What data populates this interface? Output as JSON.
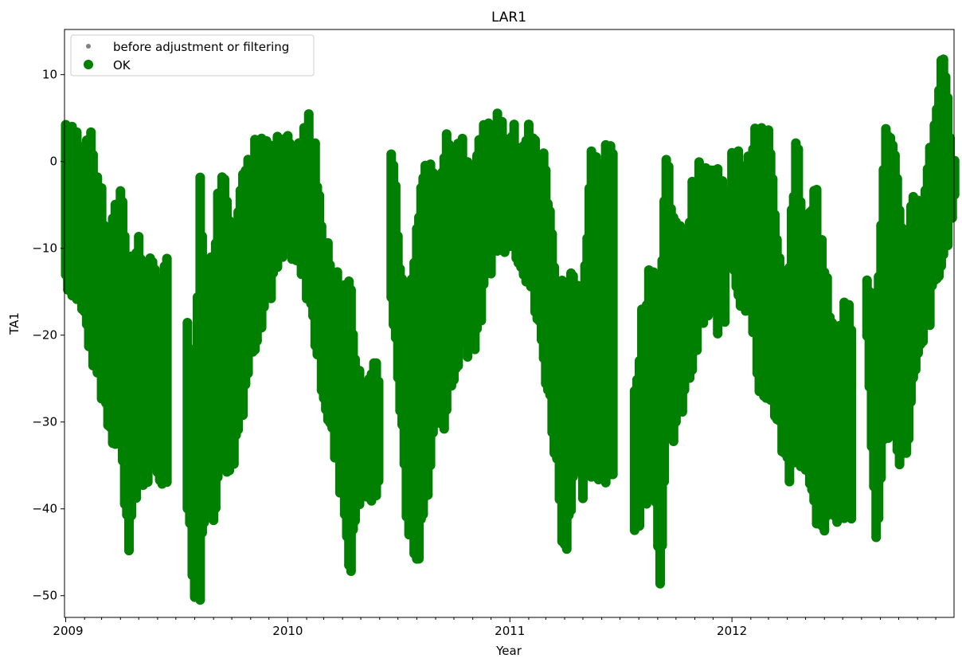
{
  "chart_data": {
    "type": "scatter",
    "title": "LAR1",
    "xlabel": "Year",
    "ylabel": "TA1",
    "xlim": [
      "2008-12-30",
      "2012-12-31"
    ],
    "ylim": [
      -52.5,
      15.2
    ],
    "x_ticks": [
      "2009",
      "2010",
      "2011",
      "2012"
    ],
    "y_ticks": [
      10,
      0,
      -10,
      -20,
      -30,
      -40,
      -50
    ],
    "grid": false,
    "legend": {
      "location": "upper left",
      "entries": [
        {
          "label": "before adjustment or filtering",
          "color": "#808080",
          "marker": "small-dot"
        },
        {
          "label": "OK",
          "color": "#008000",
          "marker": "circle"
        }
      ]
    },
    "series": [
      {
        "name": "OK",
        "color": "#008000",
        "approximate_daily_ranges": [
          {
            "x": "2009-01-01",
            "y_min": -13,
            "y_max": 4
          },
          {
            "x": "2009-01-15",
            "y_min": -14,
            "y_max": 2
          },
          {
            "x": "2009-02-01",
            "y_min": -18,
            "y_max": 3
          },
          {
            "x": "2009-02-15",
            "y_min": -22,
            "y_max": 1
          },
          {
            "x": "2009-03-01",
            "y_min": -26,
            "y_max": -5
          },
          {
            "x": "2009-03-15",
            "y_min": -30,
            "y_max": -10
          },
          {
            "x": "2009-04-01",
            "y_min": -33,
            "y_max": -3
          },
          {
            "x": "2009-04-15",
            "y_min": -43,
            "y_max": -12
          },
          {
            "x": "2009-05-01",
            "y_min": -37,
            "y_max": -10
          },
          {
            "x": "2009-05-12",
            "y_min": -36,
            "y_max": -13
          },
          {
            "x": "2009-07-20",
            "y_min": -38,
            "y_max": -18
          },
          {
            "x": "2009-08-01",
            "y_min": -50,
            "y_max": -28
          },
          {
            "x": "2009-08-10",
            "y_min": -49,
            "y_max": -3
          },
          {
            "x": "2009-08-20",
            "y_min": -35,
            "y_max": -17
          },
          {
            "x": "2009-09-01",
            "y_min": -40,
            "y_max": -10
          },
          {
            "x": "2009-09-15",
            "y_min": -33,
            "y_max": 0
          },
          {
            "x": "2009-10-01",
            "y_min": -35,
            "y_max": -8
          },
          {
            "x": "2009-10-15",
            "y_min": -29,
            "y_max": -3
          },
          {
            "x": "2009-11-01",
            "y_min": -22,
            "y_max": -1
          },
          {
            "x": "2009-11-15",
            "y_min": -18,
            "y_max": 3
          },
          {
            "x": "2009-12-01",
            "y_min": -15,
            "y_max": 0
          },
          {
            "x": "2009-12-15",
            "y_min": -12,
            "y_max": 1
          },
          {
            "x": "2010-01-01",
            "y_min": -10,
            "y_max": 1
          },
          {
            "x": "2010-01-15",
            "y_min": -12,
            "y_max": 0
          },
          {
            "x": "2010-02-01",
            "y_min": -14,
            "y_max": 4
          },
          {
            "x": "2010-02-15",
            "y_min": -20,
            "y_max": 2
          },
          {
            "x": "2010-03-01",
            "y_min": -26,
            "y_max": -10
          },
          {
            "x": "2010-03-15",
            "y_min": -32,
            "y_max": -12
          },
          {
            "x": "2010-04-01",
            "y_min": -38,
            "y_max": -14
          },
          {
            "x": "2010-04-15",
            "y_min": -47,
            "y_max": -15
          },
          {
            "x": "2010-04-25",
            "y_min": -38,
            "y_max": -25
          },
          {
            "x": "2010-06-20",
            "y_min": -14,
            "y_max": 2
          },
          {
            "x": "2010-07-01",
            "y_min": -24,
            "y_max": -8
          },
          {
            "x": "2010-07-15",
            "y_min": -40,
            "y_max": -20
          },
          {
            "x": "2010-08-01",
            "y_min": -46,
            "y_max": -8
          },
          {
            "x": "2010-08-15",
            "y_min": -39,
            "y_max": 0
          },
          {
            "x": "2010-09-01",
            "y_min": -30,
            "y_max": -4
          },
          {
            "x": "2010-09-15",
            "y_min": -29,
            "y_max": 1
          },
          {
            "x": "2010-10-01",
            "y_min": -25,
            "y_max": 2
          },
          {
            "x": "2010-10-15",
            "y_min": -20,
            "y_max": 2
          },
          {
            "x": "2010-11-01",
            "y_min": -21,
            "y_max": -2
          },
          {
            "x": "2010-11-15",
            "y_min": -17,
            "y_max": 2
          },
          {
            "x": "2010-12-01",
            "y_min": -11,
            "y_max": 3
          },
          {
            "x": "2010-12-15",
            "y_min": -9,
            "y_max": 4
          },
          {
            "x": "2011-01-01",
            "y_min": -8,
            "y_max": 3
          },
          {
            "x": "2011-01-15",
            "y_min": -10,
            "y_max": 2
          },
          {
            "x": "2011-02-01",
            "y_min": -13,
            "y_max": 3
          },
          {
            "x": "2011-02-15",
            "y_min": -18,
            "y_max": 1
          },
          {
            "x": "2011-03-01",
            "y_min": -24,
            "y_max": -1
          },
          {
            "x": "2011-03-15",
            "y_min": -32,
            "y_max": -12
          },
          {
            "x": "2011-04-01",
            "y_min": -45,
            "y_max": -14
          },
          {
            "x": "2011-04-15",
            "y_min": -36,
            "y_max": -14
          },
          {
            "x": "2011-05-01",
            "y_min": -38,
            "y_max": -17
          },
          {
            "x": "2011-05-15",
            "y_min": -35,
            "y_max": 0
          },
          {
            "x": "2011-07-25",
            "y_min": -43,
            "y_max": -26
          },
          {
            "x": "2011-08-10",
            "y_min": -38,
            "y_max": -16
          },
          {
            "x": "2011-08-25",
            "y_min": -36,
            "y_max": -13
          },
          {
            "x": "2011-09-05",
            "y_min": -47,
            "y_max": -18
          },
          {
            "x": "2011-09-15",
            "y_min": -33,
            "y_max": 1
          },
          {
            "x": "2011-10-01",
            "y_min": -30,
            "y_max": -8
          },
          {
            "x": "2011-10-15",
            "y_min": -27,
            "y_max": -10
          },
          {
            "x": "2011-11-01",
            "y_min": -22,
            "y_max": -2
          },
          {
            "x": "2011-11-15",
            "y_min": -18,
            "y_max": -2
          },
          {
            "x": "2012-01-01",
            "y_min": -10,
            "y_max": 2
          },
          {
            "x": "2012-01-15",
            "y_min": -16,
            "y_max": 1
          },
          {
            "x": "2012-02-01",
            "y_min": -15,
            "y_max": 0
          },
          {
            "x": "2012-02-15",
            "y_min": -27,
            "y_max": 4
          },
          {
            "x": "2012-03-01",
            "y_min": -25,
            "y_max": 3
          },
          {
            "x": "2012-03-15",
            "y_min": -30,
            "y_max": -10
          },
          {
            "x": "2012-04-01",
            "y_min": -36,
            "y_max": -18
          },
          {
            "x": "2012-04-15",
            "y_min": -33,
            "y_max": 3
          },
          {
            "x": "2012-05-01",
            "y_min": -34,
            "y_max": -10
          },
          {
            "x": "2012-05-15",
            "y_min": -40,
            "y_max": -2
          },
          {
            "x": "2012-06-01",
            "y_min": -41,
            "y_max": -12
          },
          {
            "x": "2012-06-10",
            "y_min": -40,
            "y_max": -18
          },
          {
            "x": "2012-08-10",
            "y_min": -22,
            "y_max": -12
          },
          {
            "x": "2012-08-25",
            "y_min": -43,
            "y_max": -17
          },
          {
            "x": "2012-09-10",
            "y_min": -30,
            "y_max": 3
          },
          {
            "x": "2012-09-25",
            "y_min": -31,
            "y_max": -1
          },
          {
            "x": "2012-10-10",
            "y_min": -35,
            "y_max": -9
          },
          {
            "x": "2012-10-25",
            "y_min": -26,
            "y_max": -5
          },
          {
            "x": "2012-11-10",
            "y_min": -21,
            "y_max": -4
          },
          {
            "x": "2012-11-25",
            "y_min": -16,
            "y_max": 2
          },
          {
            "x": "2012-12-10",
            "y_min": -12,
            "y_max": 12
          },
          {
            "x": "2012-12-28",
            "y_min": -5,
            "y_max": 2
          }
        ]
      }
    ]
  }
}
